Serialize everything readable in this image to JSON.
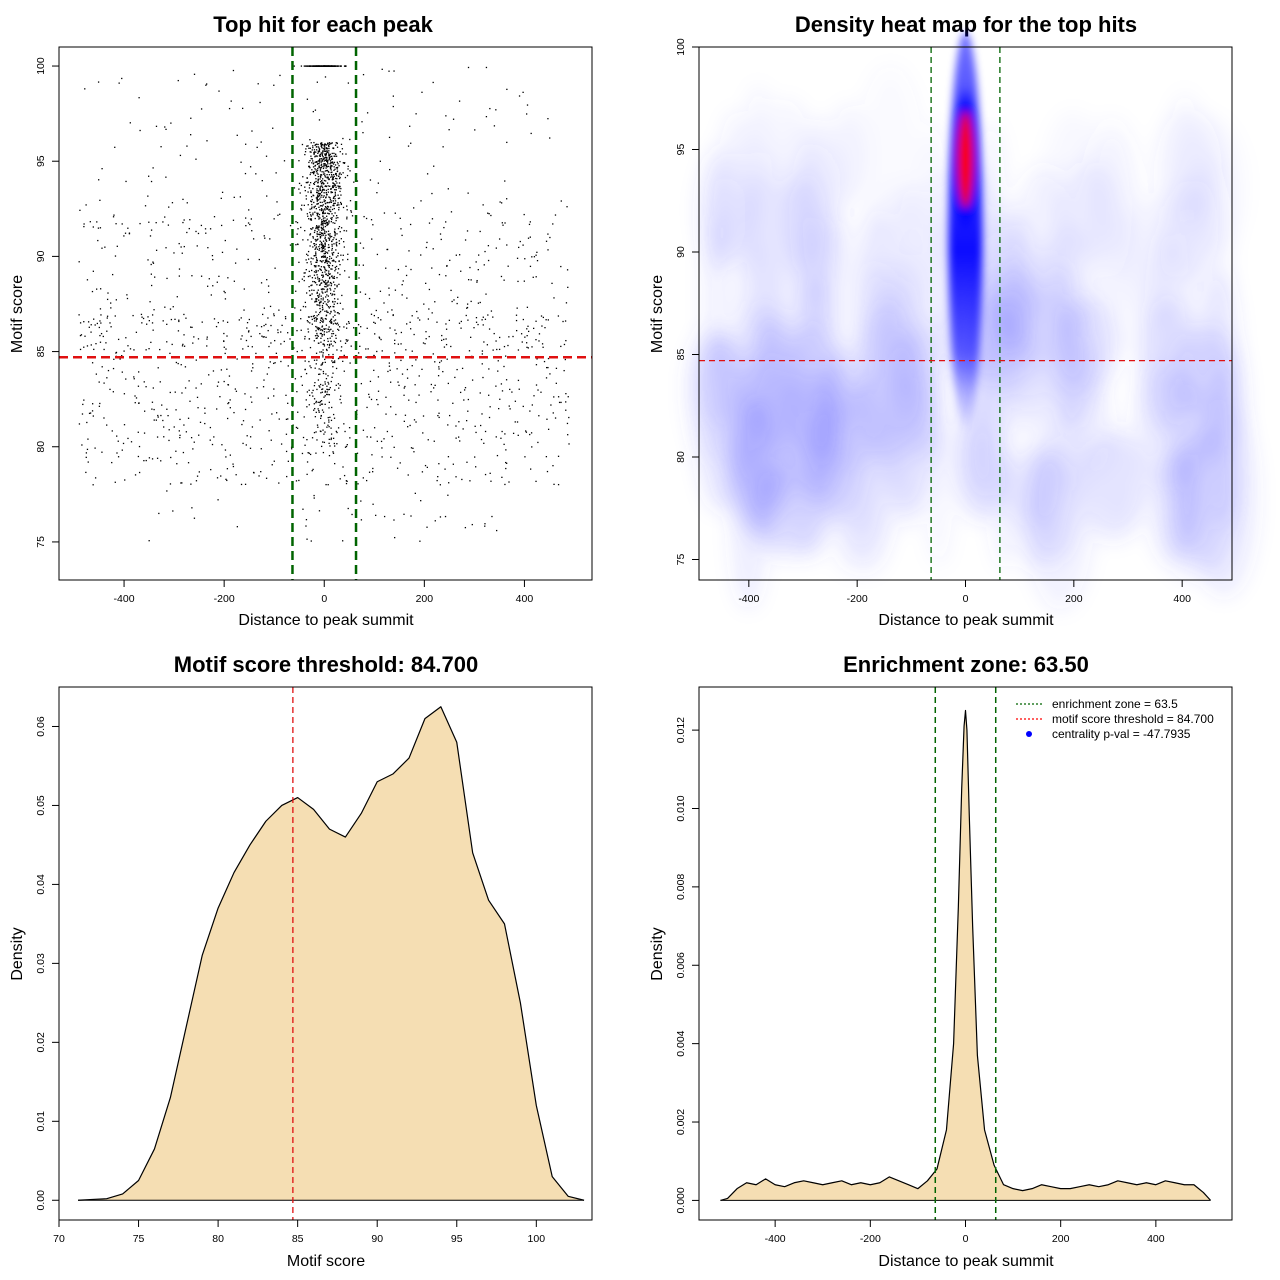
{
  "chart_data": [
    {
      "id": "scatter",
      "type": "scatter",
      "title": "Top hit for each peak",
      "xlabel": "Distance to peak summit",
      "ylabel": "Motif score",
      "xlim": [
        -530,
        535
      ],
      "ylim": [
        73,
        101
      ],
      "xticks": [
        -400,
        -200,
        0,
        200,
        400
      ],
      "yticks": [
        75,
        80,
        85,
        90,
        95,
        100
      ],
      "hline": 84.7,
      "vlines": [
        -63.5,
        63.5
      ],
      "point_color": "#000000",
      "description_points": "approx. 3000 peaks; dense column near distance 0 with scores 80-100, uniform background spread between -500 and 500 with scores 75-100"
    },
    {
      "id": "heatmap",
      "type": "heatmap",
      "title": "Density heat map for the top hits",
      "xlabel": "Distance to peak summit",
      "ylabel": "Motif score",
      "xlim": [
        -492,
        492
      ],
      "ylim": [
        74,
        100
      ],
      "xticks": [
        -400,
        -200,
        0,
        200,
        400
      ],
      "yticks": [
        75,
        80,
        85,
        90,
        95,
        100
      ],
      "hline": 84.7,
      "vlines": [
        -63.5,
        63.5
      ],
      "hotspot": {
        "x": 0,
        "y": 94.5
      },
      "colors": [
        "#ffffff",
        "#0000ff",
        "#ff0000"
      ]
    },
    {
      "id": "score_density",
      "type": "area",
      "title": "Motif score threshold: 84.700",
      "xlabel": "Motif score",
      "ylabel": "Density",
      "xlim": [
        70,
        103.5
      ],
      "ylim": [
        -0.0025,
        0.065
      ],
      "xticks": [
        70,
        75,
        80,
        85,
        90,
        95,
        100
      ],
      "yticks": [
        0.0,
        0.01,
        0.02,
        0.03,
        0.04,
        0.05,
        0.06
      ],
      "ytick_labels": [
        "0.00",
        "0.01",
        "0.02",
        "0.03",
        "0.04",
        "0.05",
        "0.06"
      ],
      "vline": 84.7,
      "x": [
        71.2,
        73,
        74,
        75,
        76,
        77,
        78,
        79,
        80,
        81,
        82,
        83,
        84,
        85,
        86,
        87,
        88,
        89,
        90,
        91,
        92,
        93,
        94,
        95,
        96,
        97,
        98,
        99,
        100,
        101,
        102,
        103
      ],
      "y": [
        0.0,
        0.0002,
        0.0008,
        0.0025,
        0.0065,
        0.013,
        0.022,
        0.031,
        0.037,
        0.0415,
        0.045,
        0.048,
        0.05,
        0.051,
        0.0495,
        0.047,
        0.046,
        0.049,
        0.053,
        0.054,
        0.056,
        0.061,
        0.0625,
        0.058,
        0.044,
        0.038,
        0.035,
        0.025,
        0.012,
        0.003,
        0.0005,
        0.0
      ],
      "fill": "#f5deb3"
    },
    {
      "id": "distance_density",
      "type": "area",
      "title": "Enrichment zone: 63.50",
      "xlabel": "Distance to peak summit",
      "ylabel": "Density",
      "xlim": [
        -560,
        560
      ],
      "ylim": [
        -0.0005,
        0.0131
      ],
      "xticks": [
        -400,
        -200,
        0,
        200,
        400
      ],
      "yticks": [
        0,
        0.002,
        0.004,
        0.006,
        0.008,
        0.01,
        0.012
      ],
      "ytick_labels": [
        "0.000",
        "0.002",
        "0.004",
        "0.006",
        "0.008",
        "0.010",
        "0.012"
      ],
      "vlines": [
        -63.5,
        63.5
      ],
      "x": [
        -515,
        -500,
        -480,
        -460,
        -440,
        -420,
        -400,
        -380,
        -360,
        -340,
        -320,
        -300,
        -280,
        -260,
        -240,
        -220,
        -200,
        -180,
        -160,
        -140,
        -120,
        -100,
        -80,
        -60,
        -40,
        -25,
        -15,
        -8,
        -3,
        0,
        3,
        8,
        15,
        25,
        40,
        60,
        80,
        100,
        120,
        140,
        160,
        180,
        200,
        220,
        240,
        260,
        280,
        300,
        320,
        340,
        360,
        380,
        400,
        420,
        440,
        460,
        480,
        500,
        515
      ],
      "y": [
        0.0,
        5e-05,
        0.0003,
        0.00045,
        0.0004,
        0.00055,
        0.0004,
        0.00035,
        0.00045,
        0.0005,
        0.00045,
        0.0004,
        0.00045,
        0.0005,
        0.0004,
        0.00045,
        0.0004,
        0.00045,
        0.0006,
        0.0005,
        0.0004,
        0.0003,
        0.0005,
        0.0008,
        0.0018,
        0.004,
        0.0075,
        0.0105,
        0.0121,
        0.0125,
        0.012,
        0.0098,
        0.007,
        0.0037,
        0.0018,
        0.0009,
        0.0004,
        0.0003,
        0.00025,
        0.0003,
        0.0004,
        0.00035,
        0.0003,
        0.0003,
        0.00035,
        0.0004,
        0.00035,
        0.0004,
        0.0005,
        0.00045,
        0.0004,
        0.00045,
        0.0004,
        0.0005,
        0.00045,
        0.0004,
        0.0004,
        0.0002,
        0.0
      ],
      "fill": "#f5deb3",
      "legend": [
        {
          "label": "enrichment zone = 63.5",
          "style": "dotted-line",
          "color": "#006400"
        },
        {
          "label": "motif score threshold = 84.700",
          "style": "dotted-line",
          "color": "#ff0000"
        },
        {
          "label": "centrality p-val = -47.7935",
          "style": "point",
          "color": "#0000ff"
        }
      ],
      "legend_position": "top-right"
    }
  ]
}
